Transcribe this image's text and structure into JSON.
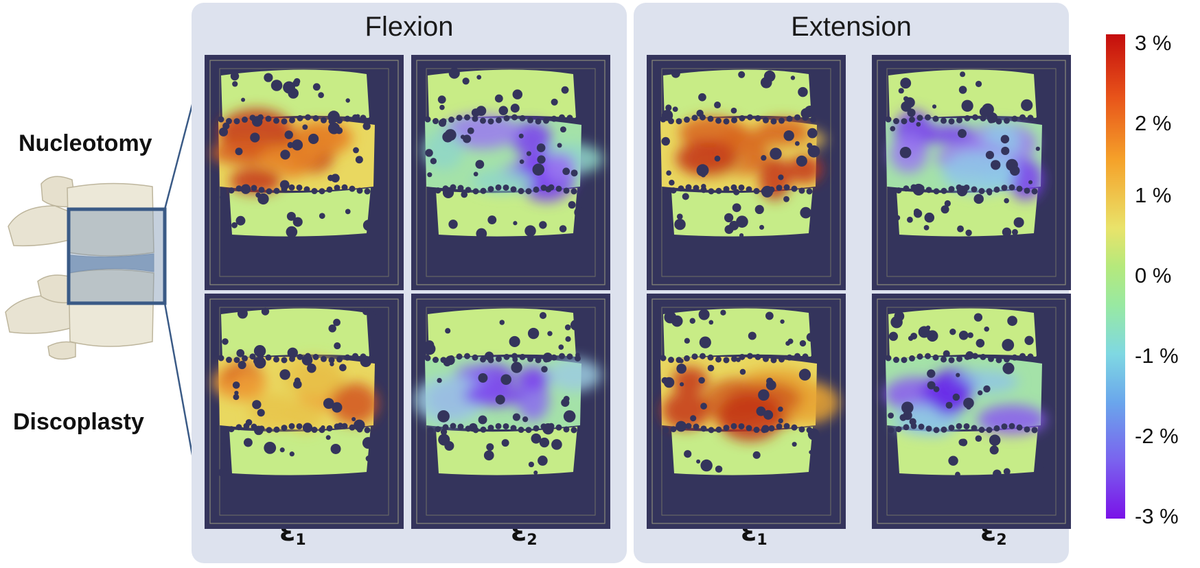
{
  "columns": {
    "flexion": {
      "title": "Flexion",
      "eps1": "ε",
      "eps1_sub": "1",
      "eps2": "ε",
      "eps2_sub": "2"
    },
    "extension": {
      "title": "Extension",
      "eps1": "ε",
      "eps1_sub": "1",
      "eps2": "ε",
      "eps2_sub": "2"
    }
  },
  "rows": {
    "top": "Nucleotomy",
    "bottom": "Discoplasty"
  },
  "colorbar": {
    "ticks": [
      "3 %",
      "2 %",
      "1 %",
      "0 %",
      "-1 %",
      "-2 %",
      "-3 %"
    ],
    "colors": {
      "max": "#c40d0d",
      "mid": "#b5e97c",
      "min": "#7a12e8"
    }
  },
  "colors": {
    "panel_bg": "#dde2ee",
    "tile_bg": "#34345c",
    "highlight_box": "#3a5a86"
  }
}
